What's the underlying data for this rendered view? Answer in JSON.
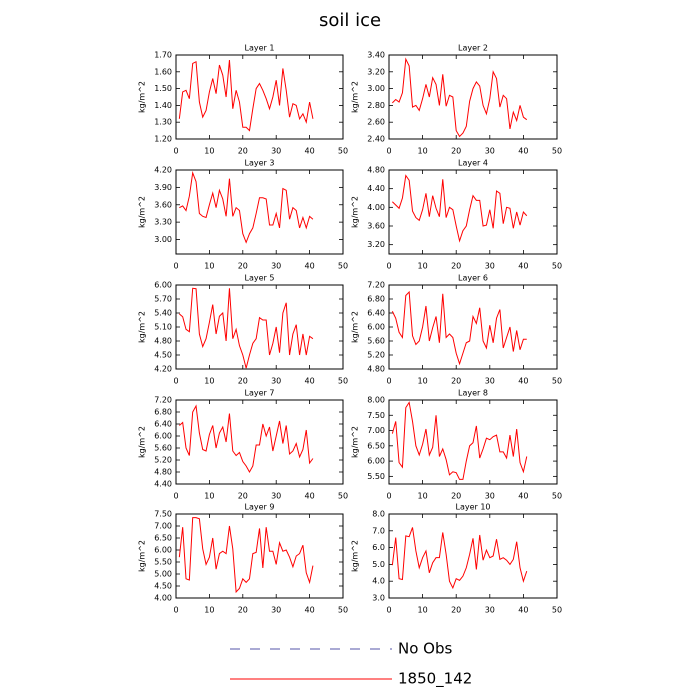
{
  "title": "soil ice",
  "legend": [
    {
      "name": "No Obs",
      "color": "#5555aa",
      "style": "dashed"
    },
    {
      "name": "1850_142",
      "color": "#ff0000",
      "style": "solid"
    }
  ],
  "chart_data": [
    {
      "type": "line",
      "title": "Layer 1",
      "y_label": "kg/m^2",
      "x": [
        1,
        2,
        3,
        4,
        5,
        6,
        7,
        8,
        9,
        10,
        11,
        12,
        13,
        14,
        15,
        16,
        17,
        18,
        19,
        20,
        21,
        22,
        23,
        24,
        25,
        26,
        27,
        28,
        29,
        30,
        31,
        32,
        33,
        34,
        35,
        36,
        37,
        38,
        39,
        40,
        41
      ],
      "values": [
        1.32,
        1.48,
        1.49,
        1.44,
        1.65,
        1.66,
        1.42,
        1.33,
        1.37,
        1.48,
        1.56,
        1.47,
        1.64,
        1.58,
        1.45,
        1.67,
        1.38,
        1.49,
        1.42,
        1.27,
        1.27,
        1.25,
        1.38,
        1.5,
        1.53,
        1.49,
        1.44,
        1.38,
        1.45,
        1.55,
        1.4,
        1.62,
        1.49,
        1.33,
        1.41,
        1.4,
        1.32,
        1.35,
        1.3,
        1.42,
        1.32
      ],
      "xlim": [
        0,
        50
      ],
      "xticks": [
        0,
        10,
        20,
        30,
        40,
        50
      ],
      "ylim": [
        1.2,
        1.7
      ],
      "yticks": [
        {
          "value": 1.2,
          "label": "1.20"
        },
        {
          "value": 1.3,
          "label": "1.30"
        },
        {
          "value": 1.4,
          "label": "1.40"
        },
        {
          "value": 1.5,
          "label": "1.50"
        },
        {
          "value": 1.6,
          "label": "1.60"
        },
        {
          "value": 1.7,
          "label": "1.70"
        }
      ]
    },
    {
      "type": "line",
      "title": "Layer 2",
      "y_label": "kg/m^2",
      "x": [
        1,
        2,
        3,
        4,
        5,
        6,
        7,
        8,
        9,
        10,
        11,
        12,
        13,
        14,
        15,
        16,
        17,
        18,
        19,
        20,
        21,
        22,
        23,
        24,
        25,
        26,
        27,
        28,
        29,
        30,
        31,
        32,
        33,
        34,
        35,
        36,
        37,
        38,
        39,
        40,
        41
      ],
      "values": [
        2.83,
        2.87,
        2.84,
        2.95,
        3.35,
        3.27,
        2.78,
        2.8,
        2.74,
        2.88,
        3.05,
        2.9,
        3.13,
        3.05,
        2.8,
        3.17,
        2.79,
        2.92,
        2.9,
        2.5,
        2.43,
        2.47,
        2.55,
        2.85,
        3.0,
        3.08,
        3.03,
        2.8,
        2.7,
        2.88,
        3.2,
        3.12,
        2.78,
        2.92,
        2.88,
        2.52,
        2.72,
        2.62,
        2.8,
        2.66,
        2.63
      ],
      "xlim": [
        0,
        50
      ],
      "xticks": [
        0,
        10,
        20,
        30,
        40,
        50
      ],
      "ylim": [
        2.4,
        3.4
      ],
      "yticks": [
        {
          "value": 2.4,
          "label": "2.40"
        },
        {
          "value": 2.6,
          "label": "2.60"
        },
        {
          "value": 2.8,
          "label": "2.80"
        },
        {
          "value": 3.0,
          "label": "3.00"
        },
        {
          "value": 3.2,
          "label": "3.20"
        },
        {
          "value": 3.4,
          "label": "3.40"
        }
      ]
    },
    {
      "type": "line",
      "title": "Layer 3",
      "y_label": "kg/m^2",
      "x": [
        1,
        2,
        3,
        4,
        5,
        6,
        7,
        8,
        9,
        10,
        11,
        12,
        13,
        14,
        15,
        16,
        17,
        18,
        19,
        20,
        21,
        22,
        23,
        24,
        25,
        26,
        27,
        28,
        29,
        30,
        31,
        32,
        33,
        34,
        35,
        36,
        37,
        38,
        39,
        40,
        41
      ],
      "values": [
        3.55,
        3.58,
        3.5,
        3.75,
        4.15,
        4.0,
        3.45,
        3.4,
        3.38,
        3.6,
        3.8,
        3.55,
        3.85,
        3.7,
        3.4,
        4.05,
        3.4,
        3.55,
        3.5,
        3.1,
        2.95,
        3.1,
        3.2,
        3.45,
        3.72,
        3.72,
        3.7,
        3.25,
        3.25,
        3.45,
        3.2,
        3.88,
        3.85,
        3.35,
        3.55,
        3.5,
        3.2,
        3.38,
        3.2,
        3.4,
        3.35
      ],
      "xlim": [
        0,
        50
      ],
      "xticks": [
        0,
        10,
        20,
        30,
        40,
        50
      ],
      "ylim": [
        2.75,
        4.2
      ],
      "yticks": [
        {
          "value": 3.0,
          "label": "3.00"
        },
        {
          "value": 3.3,
          "label": "3.30"
        },
        {
          "value": 3.6,
          "label": "3.60"
        },
        {
          "value": 3.9,
          "label": "3.90"
        },
        {
          "value": 4.2,
          "label": "4.20"
        }
      ]
    },
    {
      "type": "line",
      "title": "Layer 4",
      "y_label": "kg/m^2",
      "x": [
        1,
        2,
        3,
        4,
        5,
        6,
        7,
        8,
        9,
        10,
        11,
        12,
        13,
        14,
        15,
        16,
        17,
        18,
        19,
        20,
        21,
        22,
        23,
        24,
        25,
        26,
        27,
        28,
        29,
        30,
        31,
        32,
        33,
        34,
        35,
        36,
        37,
        38,
        39,
        40,
        41
      ],
      "values": [
        4.12,
        4.05,
        3.98,
        4.2,
        4.68,
        4.58,
        3.92,
        3.78,
        3.72,
        3.95,
        4.3,
        3.8,
        4.25,
        3.98,
        3.8,
        4.6,
        3.78,
        4.0,
        3.95,
        3.6,
        3.28,
        3.5,
        3.6,
        3.95,
        4.25,
        4.15,
        4.15,
        3.6,
        3.62,
        3.95,
        3.55,
        4.35,
        4.3,
        3.65,
        4.0,
        3.98,
        3.55,
        3.9,
        3.62,
        3.9,
        3.82
      ],
      "xlim": [
        0,
        50
      ],
      "xticks": [
        0,
        10,
        20,
        30,
        40,
        50
      ],
      "ylim": [
        3.0,
        4.8
      ],
      "yticks": [
        {
          "value": 3.2,
          "label": "3.20"
        },
        {
          "value": 3.6,
          "label": "3.60"
        },
        {
          "value": 4.0,
          "label": "4.00"
        },
        {
          "value": 4.4,
          "label": "4.40"
        },
        {
          "value": 4.8,
          "label": "4.80"
        }
      ]
    },
    {
      "type": "line",
      "title": "Layer 5",
      "y_label": "kg/m^2",
      "x": [
        1,
        2,
        3,
        4,
        5,
        6,
        7,
        8,
        9,
        10,
        11,
        12,
        13,
        14,
        15,
        16,
        17,
        18,
        19,
        20,
        21,
        22,
        23,
        24,
        25,
        26,
        27,
        28,
        29,
        30,
        31,
        32,
        33,
        34,
        35,
        36,
        37,
        38,
        39,
        40,
        41
      ],
      "values": [
        5.38,
        5.32,
        5.05,
        5.0,
        5.93,
        5.92,
        4.95,
        4.68,
        4.85,
        5.2,
        5.58,
        4.95,
        5.33,
        5.4,
        4.8,
        5.93,
        4.85,
        5.05,
        4.7,
        4.5,
        4.22,
        4.5,
        4.75,
        4.85,
        5.3,
        5.25,
        5.25,
        4.5,
        4.75,
        5.1,
        4.55,
        5.4,
        5.62,
        4.5,
        4.95,
        5.15,
        4.5,
        4.95,
        4.5,
        4.9,
        4.85
      ],
      "xlim": [
        0,
        50
      ],
      "xticks": [
        0,
        10,
        20,
        30,
        40,
        50
      ],
      "ylim": [
        4.2,
        6.0
      ],
      "yticks": [
        {
          "value": 4.2,
          "label": "4.20"
        },
        {
          "value": 4.5,
          "label": "4.50"
        },
        {
          "value": 4.8,
          "label": "4.80"
        },
        {
          "value": 5.1,
          "label": "5.10"
        },
        {
          "value": 5.4,
          "label": "5.40"
        },
        {
          "value": 5.7,
          "label": "5.70"
        },
        {
          "value": 6.0,
          "label": "6.00"
        }
      ]
    },
    {
      "type": "line",
      "title": "Layer 6",
      "y_label": "kg/m^2",
      "x": [
        1,
        2,
        3,
        4,
        5,
        6,
        7,
        8,
        9,
        10,
        11,
        12,
        13,
        14,
        15,
        16,
        17,
        18,
        19,
        20,
        21,
        22,
        23,
        24,
        25,
        26,
        27,
        28,
        29,
        30,
        31,
        32,
        33,
        34,
        35,
        36,
        37,
        38,
        39,
        40,
        41
      ],
      "values": [
        6.45,
        6.25,
        5.85,
        5.7,
        6.9,
        7.0,
        5.75,
        5.5,
        5.6,
        6.0,
        6.6,
        5.6,
        5.98,
        6.3,
        5.55,
        6.95,
        5.7,
        5.8,
        5.7,
        5.25,
        4.95,
        5.25,
        5.55,
        5.6,
        6.3,
        6.1,
        6.55,
        5.6,
        5.4,
        6.05,
        5.55,
        6.25,
        6.5,
        5.4,
        5.7,
        6.0,
        5.3,
        5.9,
        5.35,
        5.65,
        5.65
      ],
      "xlim": [
        0,
        50
      ],
      "xticks": [
        0,
        10,
        20,
        30,
        40,
        50
      ],
      "ylim": [
        4.8,
        7.2
      ],
      "yticks": [
        {
          "value": 4.8,
          "label": "4.80"
        },
        {
          "value": 5.2,
          "label": "5.20"
        },
        {
          "value": 5.6,
          "label": "5.60"
        },
        {
          "value": 6.0,
          "label": "6.00"
        },
        {
          "value": 6.4,
          "label": "6.40"
        },
        {
          "value": 6.8,
          "label": "6.80"
        },
        {
          "value": 7.2,
          "label": "7.20"
        }
      ]
    },
    {
      "type": "line",
      "title": "Layer 7",
      "y_label": "kg/m^2",
      "x": [
        1,
        2,
        3,
        4,
        5,
        6,
        7,
        8,
        9,
        10,
        11,
        12,
        13,
        14,
        15,
        16,
        17,
        18,
        19,
        20,
        21,
        22,
        23,
        24,
        25,
        26,
        27,
        28,
        29,
        30,
        31,
        32,
        33,
        34,
        35,
        36,
        37,
        38,
        39,
        40,
        41
      ],
      "values": [
        6.35,
        6.45,
        5.6,
        5.35,
        6.8,
        7.0,
        6.1,
        5.55,
        5.5,
        6.05,
        6.35,
        5.6,
        6.1,
        6.3,
        5.8,
        6.75,
        5.5,
        5.35,
        5.45,
        5.15,
        5.0,
        4.8,
        5.0,
        5.7,
        5.7,
        6.4,
        6.0,
        6.3,
        5.5,
        6.0,
        6.5,
        5.75,
        6.35,
        5.4,
        5.5,
        5.75,
        5.3,
        5.55,
        6.2,
        5.1,
        5.25
      ],
      "xlim": [
        0,
        50
      ],
      "xticks": [
        0,
        10,
        20,
        30,
        40,
        50
      ],
      "ylim": [
        4.4,
        7.2
      ],
      "yticks": [
        {
          "value": 4.4,
          "label": "4.40"
        },
        {
          "value": 4.8,
          "label": "4.80"
        },
        {
          "value": 5.2,
          "label": "5.20"
        },
        {
          "value": 5.6,
          "label": "5.60"
        },
        {
          "value": 6.0,
          "label": "6.00"
        },
        {
          "value": 6.4,
          "label": "6.40"
        },
        {
          "value": 6.8,
          "label": "6.80"
        },
        {
          "value": 7.2,
          "label": "7.20"
        }
      ]
    },
    {
      "type": "line",
      "title": "Layer 8",
      "y_label": "kg/m^2",
      "x": [
        1,
        2,
        3,
        4,
        5,
        6,
        7,
        8,
        9,
        10,
        11,
        12,
        13,
        14,
        15,
        16,
        17,
        18,
        19,
        20,
        21,
        22,
        23,
        24,
        25,
        26,
        27,
        28,
        29,
        30,
        31,
        32,
        33,
        34,
        35,
        36,
        37,
        38,
        39,
        40,
        41
      ],
      "values": [
        6.9,
        7.3,
        5.95,
        5.8,
        7.75,
        7.92,
        7.3,
        6.5,
        6.2,
        6.55,
        7.05,
        6.2,
        6.45,
        7.5,
        6.15,
        6.4,
        6.05,
        5.55,
        5.65,
        5.62,
        5.4,
        5.4,
        6.0,
        6.5,
        6.6,
        7.15,
        6.1,
        6.4,
        6.75,
        6.7,
        6.8,
        6.85,
        6.3,
        6.3,
        6.1,
        6.85,
        6.15,
        7.05,
        5.95,
        5.65,
        6.15
      ],
      "xlim": [
        0,
        50
      ],
      "xticks": [
        0,
        10,
        20,
        30,
        40,
        50
      ],
      "ylim": [
        5.25,
        8.0
      ],
      "yticks": [
        {
          "value": 5.5,
          "label": "5.50"
        },
        {
          "value": 6.0,
          "label": "6.00"
        },
        {
          "value": 6.5,
          "label": "6.50"
        },
        {
          "value": 7.0,
          "label": "7.00"
        },
        {
          "value": 7.5,
          "label": "7.50"
        },
        {
          "value": 8.0,
          "label": "8.00"
        }
      ]
    },
    {
      "type": "line",
      "title": "Layer 9",
      "y_label": "kg/m^2",
      "x": [
        1,
        2,
        3,
        4,
        5,
        6,
        7,
        8,
        9,
        10,
        11,
        12,
        13,
        14,
        15,
        16,
        17,
        18,
        19,
        20,
        21,
        22,
        23,
        24,
        25,
        26,
        27,
        28,
        29,
        30,
        31,
        32,
        33,
        34,
        35,
        36,
        37,
        38,
        39,
        40,
        41
      ],
      "values": [
        5.7,
        6.95,
        4.8,
        4.75,
        7.35,
        7.35,
        7.3,
        6.05,
        5.4,
        5.7,
        6.5,
        5.2,
        5.85,
        5.95,
        5.85,
        7.0,
        6.05,
        4.25,
        4.4,
        4.8,
        4.65,
        4.8,
        5.85,
        5.9,
        6.9,
        5.25,
        6.95,
        5.95,
        5.95,
        5.4,
        6.3,
        5.95,
        6.0,
        5.7,
        5.3,
        5.75,
        5.85,
        6.2,
        5.05,
        4.65,
        5.35
      ],
      "xlim": [
        0,
        50
      ],
      "xticks": [
        0,
        10,
        20,
        30,
        40,
        50
      ],
      "ylim": [
        4.0,
        7.5
      ],
      "yticks": [
        {
          "value": 4.0,
          "label": "4.00"
        },
        {
          "value": 4.5,
          "label": "4.50"
        },
        {
          "value": 5.0,
          "label": "5.00"
        },
        {
          "value": 5.5,
          "label": "5.50"
        },
        {
          "value": 6.0,
          "label": "6.00"
        },
        {
          "value": 6.5,
          "label": "6.50"
        },
        {
          "value": 7.0,
          "label": "7.00"
        },
        {
          "value": 7.5,
          "label": "7.50"
        }
      ]
    },
    {
      "type": "line",
      "title": "Layer 10",
      "y_label": "kg/m^2",
      "x": [
        1,
        2,
        3,
        4,
        5,
        6,
        7,
        8,
        9,
        10,
        11,
        12,
        13,
        14,
        15,
        16,
        17,
        18,
        19,
        20,
        21,
        22,
        23,
        24,
        25,
        26,
        27,
        28,
        29,
        30,
        31,
        32,
        33,
        34,
        35,
        36,
        37,
        38,
        39,
        40,
        41
      ],
      "values": [
        4.95,
        6.6,
        4.15,
        4.1,
        6.7,
        6.65,
        7.2,
        5.8,
        4.8,
        5.4,
        5.8,
        4.5,
        5.1,
        5.4,
        5.4,
        6.9,
        5.6,
        4.0,
        3.6,
        4.15,
        4.05,
        4.3,
        4.8,
        5.6,
        6.55,
        4.7,
        6.75,
        5.25,
        5.85,
        5.4,
        5.5,
        6.5,
        5.3,
        5.4,
        5.25,
        5.0,
        5.3,
        6.35,
        4.8,
        4.0,
        4.6
      ],
      "xlim": [
        0,
        50
      ],
      "xticks": [
        0,
        10,
        20,
        30,
        40,
        50
      ],
      "ylim": [
        3.0,
        8.0
      ],
      "yticks": [
        {
          "value": 3.0,
          "label": "3.0"
        },
        {
          "value": 4.0,
          "label": "4.0"
        },
        {
          "value": 5.0,
          "label": "5.0"
        },
        {
          "value": 6.0,
          "label": "6.0"
        },
        {
          "value": 7.0,
          "label": "7.0"
        },
        {
          "value": 8.0,
          "label": "8.0"
        }
      ]
    }
  ]
}
